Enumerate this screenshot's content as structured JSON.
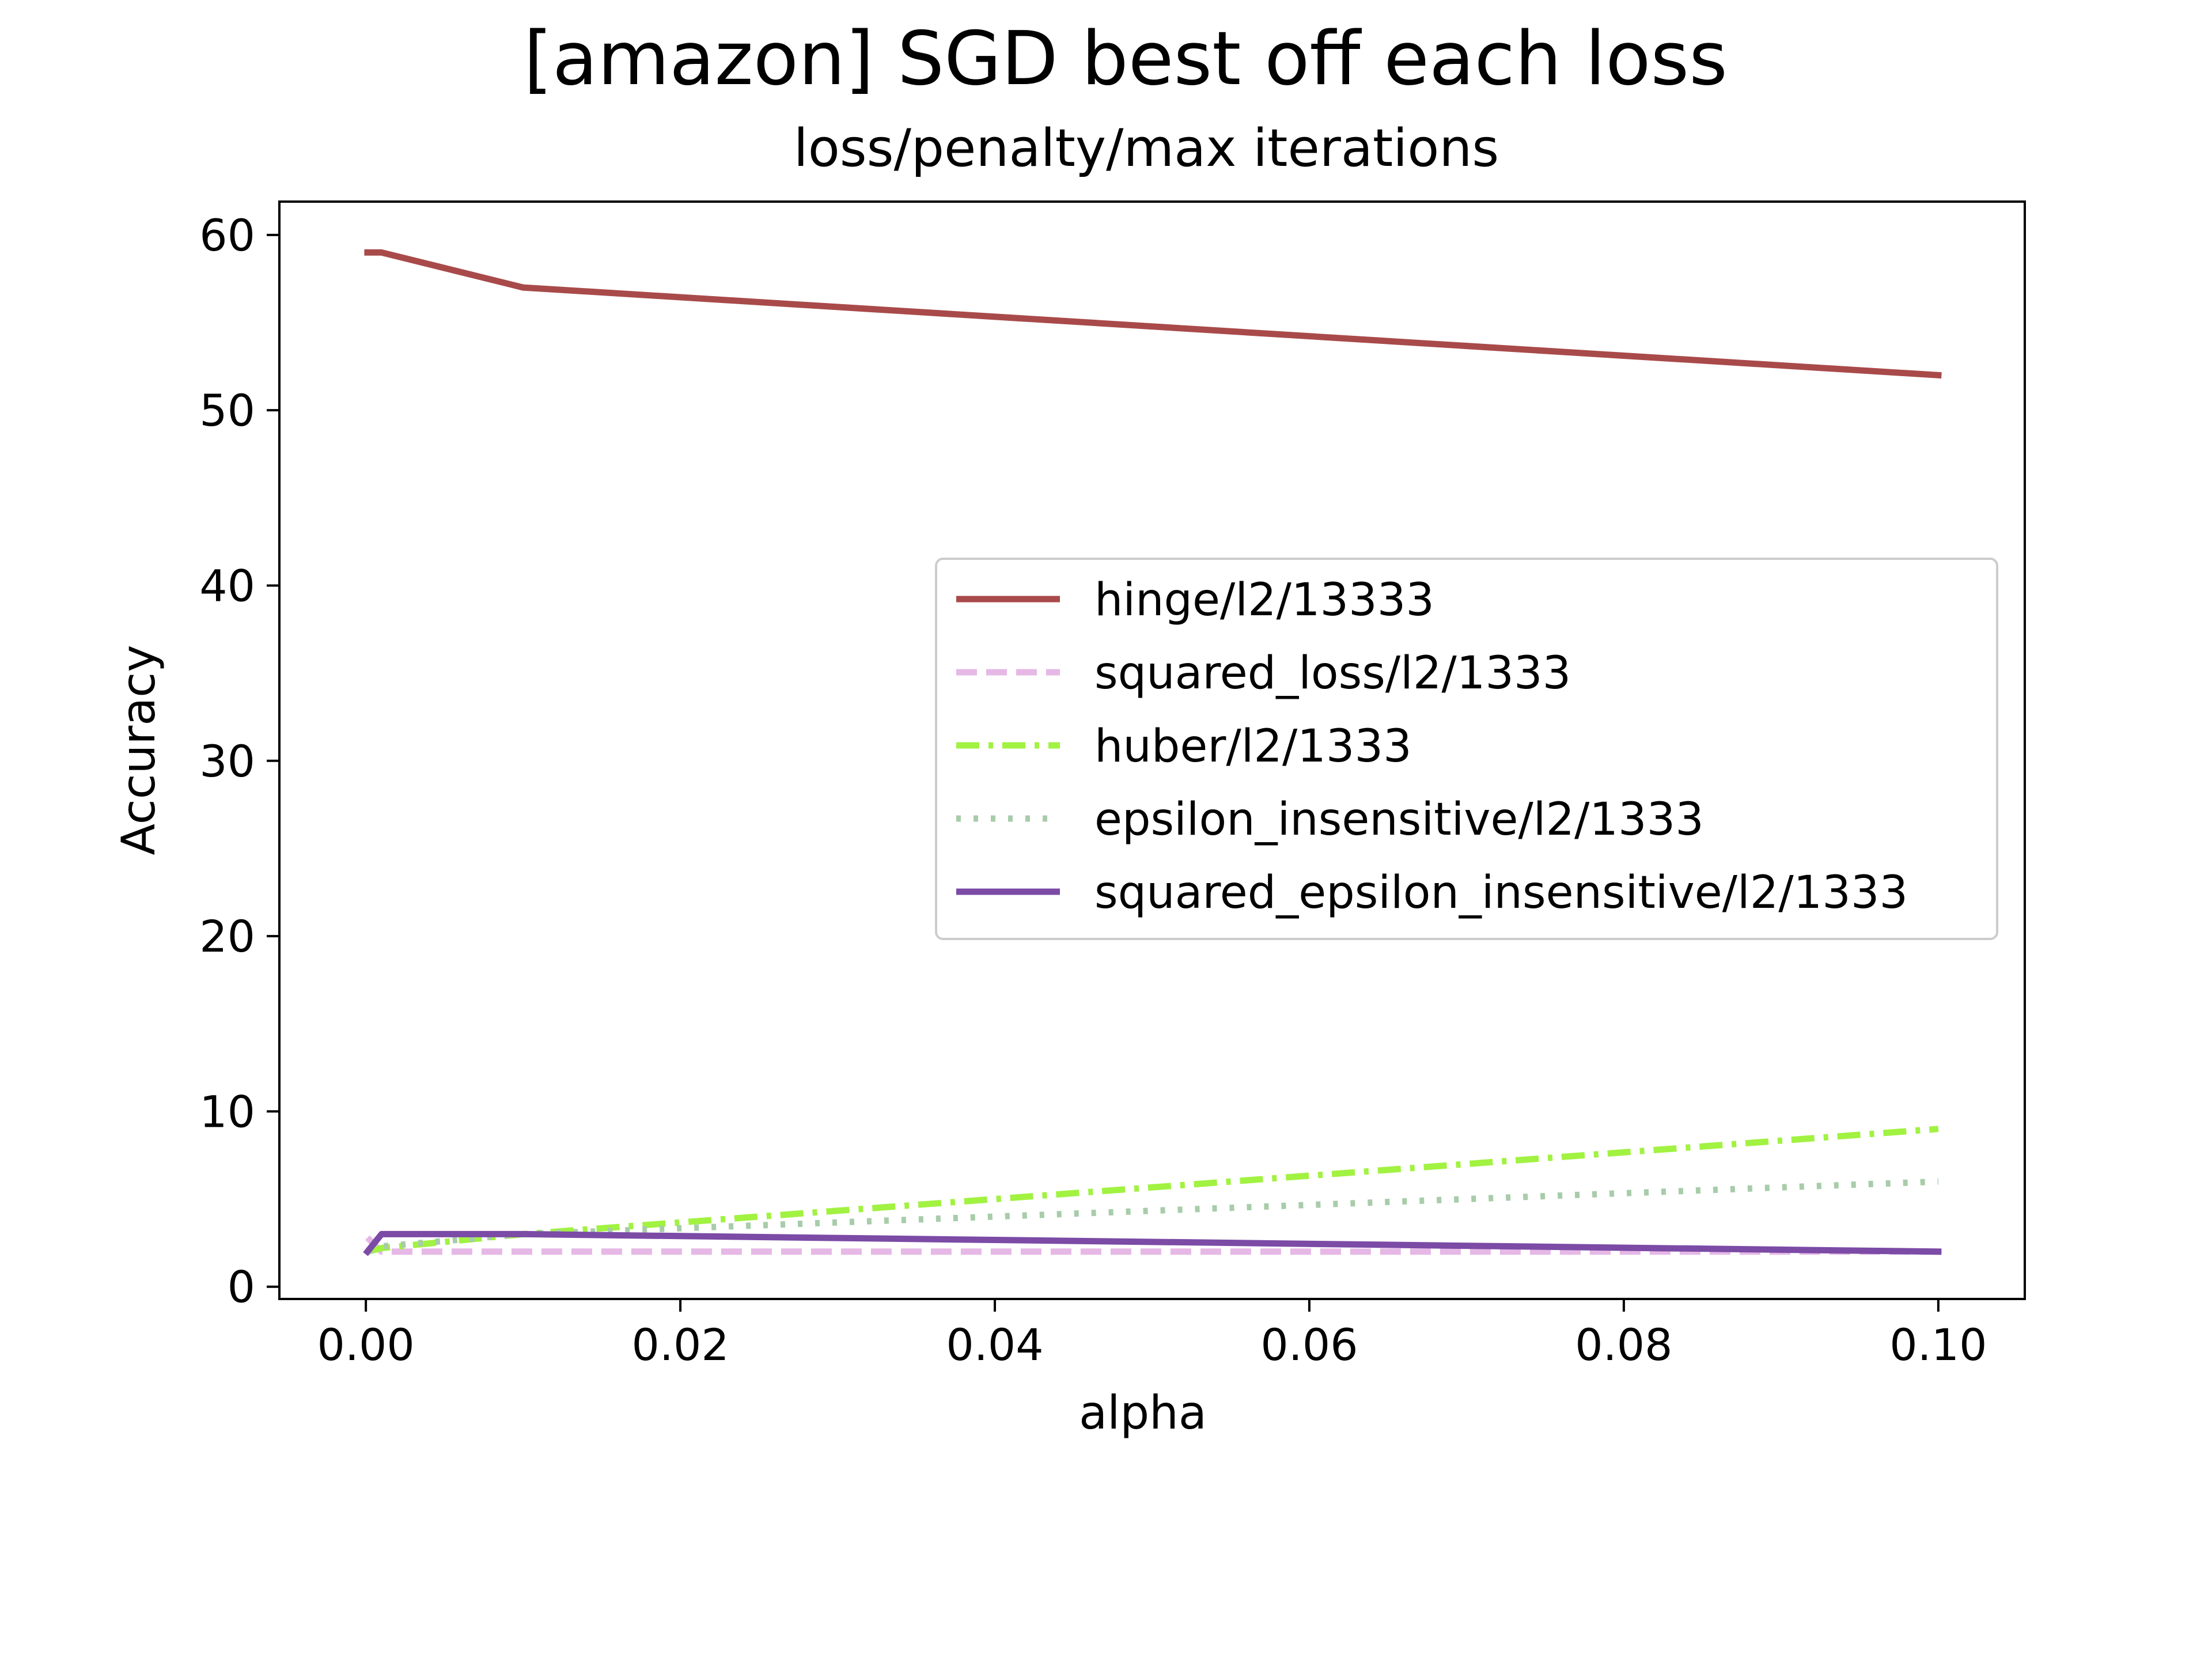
{
  "chart_data": {
    "type": "line",
    "title": "[amazon] SGD best off each loss",
    "subtitle": "loss/penalty/max iterations",
    "xlabel": "alpha",
    "ylabel": "Accuracy",
    "xlim": [
      -0.0055,
      0.1055
    ],
    "ylim": [
      -0.7,
      61.9
    ],
    "xticks": [
      0.0,
      0.02,
      0.04,
      0.06,
      0.08,
      0.1
    ],
    "xtick_labels": [
      "0.00",
      "0.02",
      "0.04",
      "0.06",
      "0.08",
      "0.10"
    ],
    "yticks": [
      0,
      10,
      20,
      30,
      40,
      50,
      60
    ],
    "ytick_labels": [
      "0",
      "10",
      "20",
      "30",
      "40",
      "50",
      "60"
    ],
    "grid": false,
    "legend_position": "center-right",
    "x": [
      0.0001,
      0.001,
      0.01,
      0.1
    ],
    "series": [
      {
        "name": "hinge/l2/13333",
        "values": [
          59,
          59,
          57,
          52
        ],
        "color": "#a94a4a",
        "style": "solid"
      },
      {
        "name": "squared_loss/l2/1333",
        "values": [
          2.8,
          2,
          2,
          2
        ],
        "color": "#e6b8e6",
        "style": "dashed"
      },
      {
        "name": "huber/l2/1333",
        "values": [
          2,
          2.2,
          3,
          9
        ],
        "color": "#a1f241",
        "style": "dashdot"
      },
      {
        "name": "epsilon_insensitive/l2/1333",
        "values": [
          2,
          2.3,
          3,
          6
        ],
        "color": "#a8ccaa",
        "style": "dotted"
      },
      {
        "name": "squared_epsilon_insensitive/l2/1333",
        "values": [
          2,
          3,
          3,
          2
        ],
        "color": "#7b4ba6",
        "style": "solid"
      }
    ]
  }
}
